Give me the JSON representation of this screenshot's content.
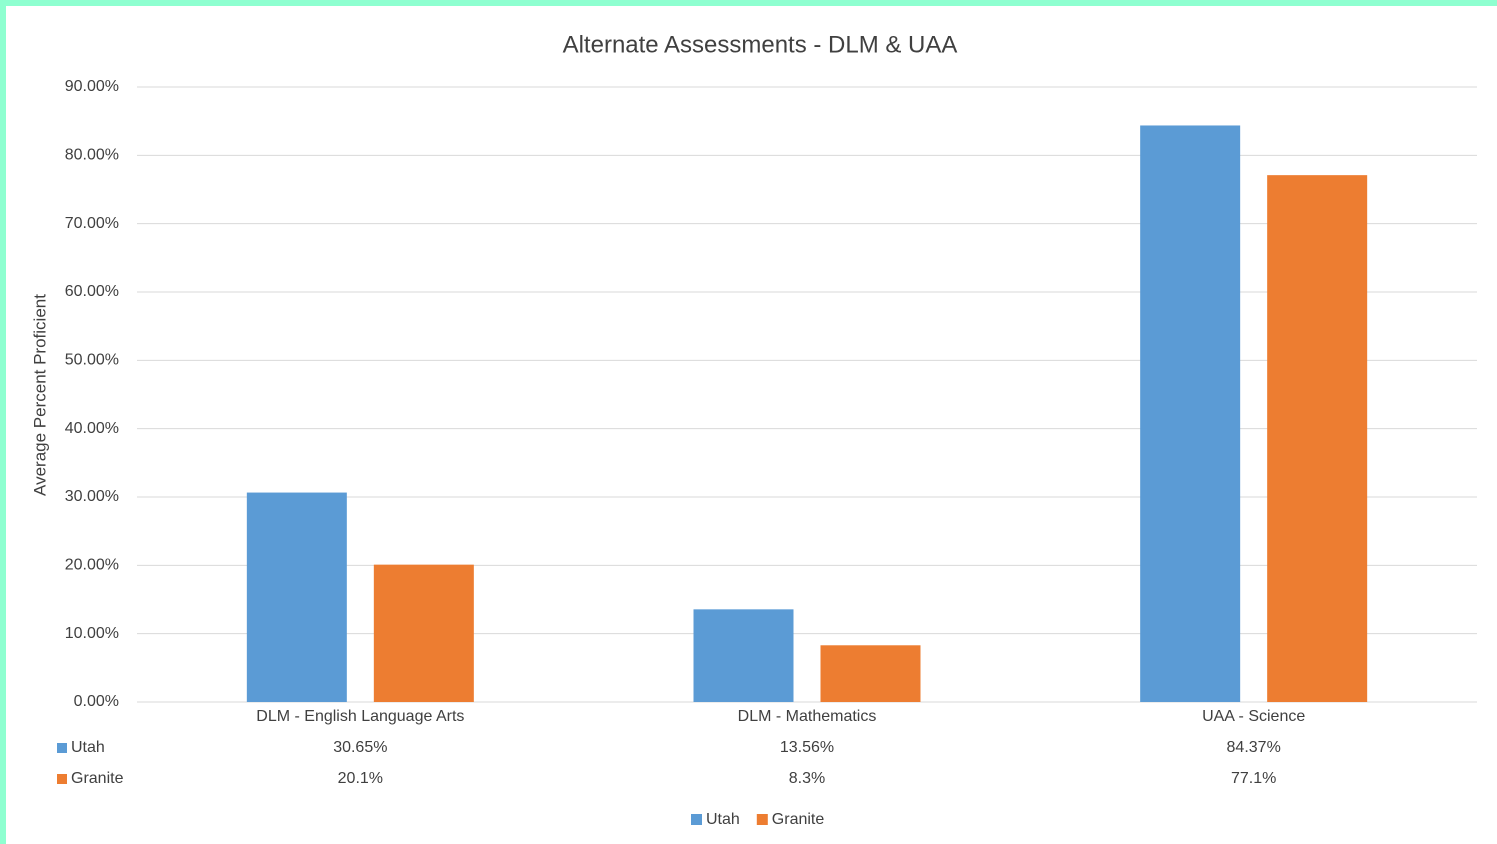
{
  "chart_data": {
    "type": "bar",
    "title": "Alternate Assessments - DLM & UAA",
    "y_label": "Average Percent Proficient",
    "categories": [
      "DLM - English Language Arts",
      "DLM - Mathematics",
      "UAA - Science"
    ],
    "series": [
      {
        "name": "Utah",
        "color": "#5b9bd5",
        "values": [
          30.65,
          13.56,
          84.37
        ],
        "value_labels": [
          "30.65%",
          "13.56%",
          "84.37%"
        ]
      },
      {
        "name": "Granite",
        "color": "#ed7d31",
        "values": [
          20.1,
          8.3,
          77.1
        ],
        "value_labels": [
          "20.1%",
          "8.3%",
          "77.1%"
        ]
      }
    ],
    "ylim": [
      0,
      90
    ],
    "yticks": [
      {
        "value": 0,
        "label": "0.00%"
      },
      {
        "value": 10,
        "label": "10.00%"
      },
      {
        "value": 20,
        "label": "20.00%"
      },
      {
        "value": 30,
        "label": "30.00%"
      },
      {
        "value": 40,
        "label": "40.00%"
      },
      {
        "value": 50,
        "label": "50.00%"
      },
      {
        "value": 60,
        "label": "60.00%"
      },
      {
        "value": 70,
        "label": "70.00%"
      },
      {
        "value": 80,
        "label": "80.00%"
      },
      {
        "value": 90,
        "label": "90.00%"
      }
    ],
    "grid": true,
    "legend": "bottom"
  }
}
